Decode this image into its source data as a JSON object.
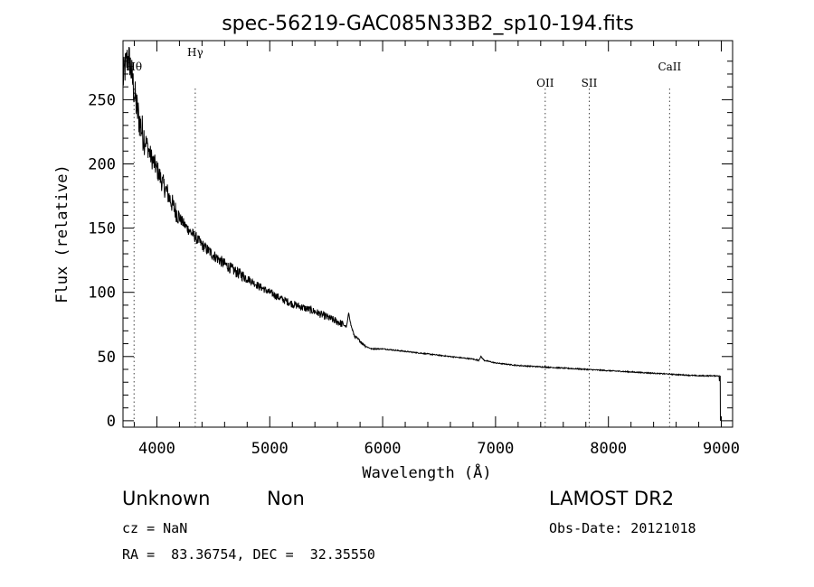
{
  "chart_data": {
    "type": "line",
    "title": "spec-56219-GAC085N33B2_sp10-194.fits",
    "xlabel": "Wavelength (Å)",
    "ylabel": "Flux (relative)",
    "xlim": [
      3700,
      9100
    ],
    "ylim": [
      -5,
      296
    ],
    "xticks": [
      4000,
      5000,
      6000,
      7000,
      8000,
      9000
    ],
    "yticks": [
      0,
      50,
      100,
      150,
      200,
      250
    ],
    "grid": false,
    "series": [
      {
        "x": [
          3700,
          3720,
          3740,
          3760,
          3780,
          3800,
          3830,
          3860,
          3900,
          3950,
          4000,
          4050,
          4100,
          4150,
          4200,
          4250,
          4300,
          4350,
          4400,
          4450,
          4500,
          4600,
          4700,
          4800,
          4900,
          5000,
          5100,
          5200,
          5300,
          5400,
          5500,
          5600,
          5650,
          5680,
          5700,
          5720,
          5750,
          5800,
          5850,
          5900,
          6000,
          6200,
          6400,
          6600,
          6800,
          6850,
          6870,
          6900,
          7000,
          7200,
          7400,
          7600,
          7800,
          8000,
          8200,
          8400,
          8600,
          8800,
          8950,
          8980,
          8990,
          9000
        ],
        "y": [
          265,
          275,
          282,
          280,
          268,
          255,
          240,
          228,
          218,
          205,
          196,
          185,
          176,
          166,
          158,
          152,
          147,
          142,
          137,
          133,
          129,
          122,
          116,
          111,
          105,
          100,
          95,
          91,
          88,
          85,
          81,
          77,
          75,
          73,
          84,
          74,
          66,
          62,
          58,
          56,
          56,
          54,
          52,
          50,
          48,
          47,
          50,
          47,
          45,
          43,
          42,
          41,
          40,
          39,
          38,
          37,
          36,
          35,
          35,
          35,
          20,
          0
        ]
      }
    ],
    "lines": [
      {
        "label": "Hθ",
        "x": 3798
      },
      {
        "label": "Hγ",
        "x": 4340
      },
      {
        "label": "OII",
        "x": 7440
      },
      {
        "label": "SII",
        "x": 7830
      },
      {
        "label": "CaII",
        "x": 8542
      }
    ]
  },
  "footer": {
    "classification": "Unknown",
    "subclass": "Non",
    "survey": "LAMOST DR2",
    "cz": "cz = NaN",
    "obs_date": "Obs-Date: 20121018",
    "coords": "RA =  83.36754, DEC =  32.35550"
  }
}
